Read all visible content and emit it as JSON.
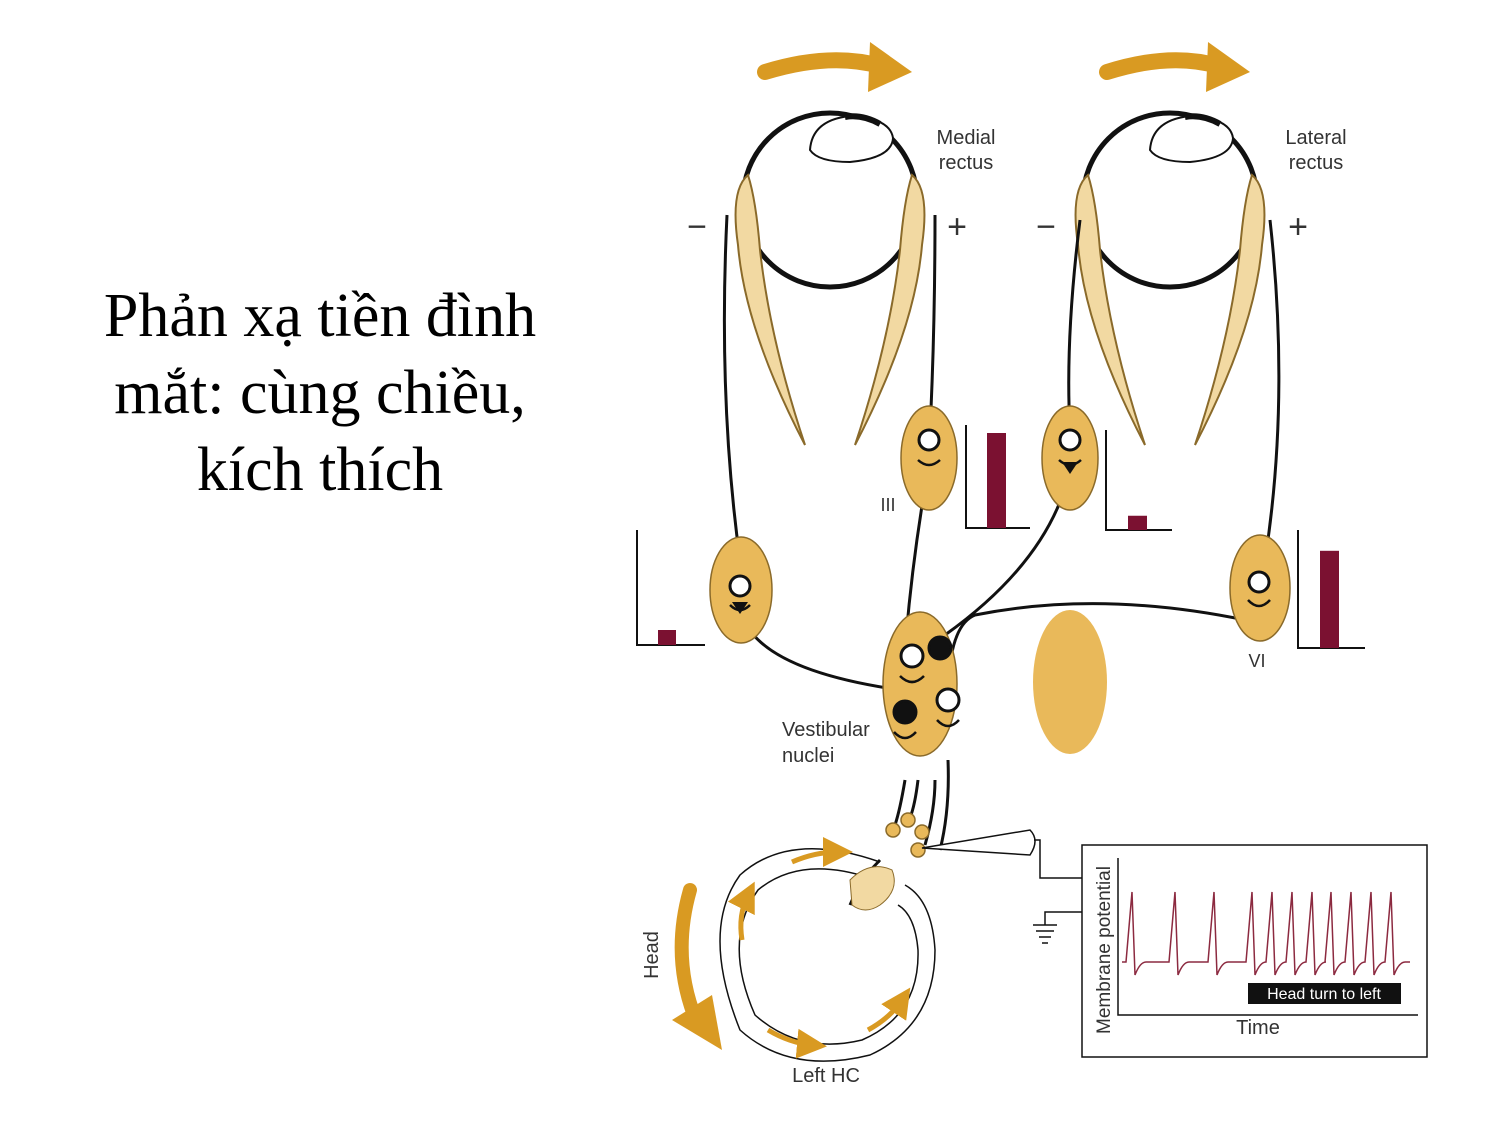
{
  "title_lines": [
    "Phản xạ tiền đình",
    "mắt: cùng chiều,",
    "kích thích"
  ],
  "labels": {
    "medial_rectus": [
      "Medial",
      "rectus"
    ],
    "lateral_rectus": [
      "Lateral",
      "rectus"
    ],
    "minus": "−",
    "plus": "+",
    "nucleus_III": "III",
    "nucleus_VI": "VI",
    "vestibular_nuclei": [
      "Vestibular",
      "nuclei"
    ],
    "head": "Head",
    "left_hc": "Left HC",
    "membrane_potential": "Membrane potential",
    "time": "Time",
    "head_turn": "Head turn to left"
  },
  "colors": {
    "gold": "#E9B95A",
    "gold_dark": "#C98A12",
    "arrow": "#D99A22",
    "bar": "#7B1131",
    "trace": "#8C2A40",
    "line": "#111111"
  },
  "activity_levels": {
    "medial_rectus_nucleus_III": 0.95,
    "lateral_rectus_antagonist_III": 0.15,
    "left_oculomotor_neuron": 0.15,
    "abducens_nucleus_VI": 0.9
  }
}
